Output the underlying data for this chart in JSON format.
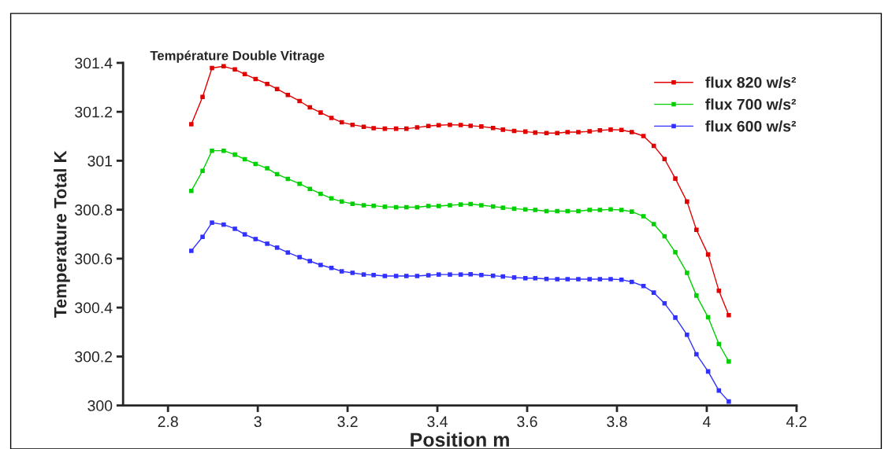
{
  "chart_data": {
    "type": "line",
    "title": "Température Double Vitrage",
    "xlabel": "Position m",
    "ylabel": "Temperature Total K",
    "x": [
      2.852,
      2.877,
      2.898,
      2.924,
      2.949,
      2.971,
      2.995,
      3.021,
      3.043,
      3.067,
      3.093,
      3.116,
      3.14,
      3.164,
      3.187,
      3.211,
      3.236,
      3.258,
      3.283,
      3.308,
      3.331,
      3.355,
      3.38,
      3.403,
      3.428,
      3.452,
      3.474,
      3.498,
      3.524,
      3.546,
      3.571,
      3.596,
      3.618,
      3.643,
      3.667,
      3.69,
      3.714,
      3.739,
      3.762,
      3.786,
      3.81,
      3.833,
      3.859,
      3.882,
      3.906,
      3.93,
      3.956,
      3.977,
      4.003,
      4.027,
      4.049
    ],
    "series": [
      {
        "name": "flux 820 w/s²",
        "color": "#e00000",
        "values": [
          301.149,
          301.261,
          301.379,
          301.386,
          301.373,
          301.354,
          301.334,
          301.314,
          301.293,
          301.269,
          301.244,
          301.218,
          301.197,
          301.175,
          301.157,
          301.147,
          301.139,
          301.133,
          301.131,
          301.131,
          301.131,
          301.136,
          301.142,
          301.145,
          301.147,
          301.146,
          301.143,
          301.14,
          301.134,
          301.127,
          301.122,
          301.119,
          301.115,
          301.113,
          301.113,
          301.117,
          301.117,
          301.12,
          301.124,
          301.127,
          301.126,
          301.117,
          301.101,
          301.061,
          301.007,
          300.927,
          300.833,
          300.718,
          300.617,
          300.469,
          300.369
        ]
      },
      {
        "name": "flux 700 w/s²",
        "color": "#00d000",
        "values": [
          300.877,
          300.959,
          301.041,
          301.041,
          301.025,
          301.006,
          300.987,
          300.969,
          300.945,
          300.926,
          300.906,
          300.885,
          300.865,
          300.846,
          300.833,
          300.824,
          300.818,
          300.816,
          300.812,
          300.81,
          300.81,
          300.81,
          300.815,
          300.815,
          300.818,
          300.821,
          300.823,
          300.818,
          300.813,
          300.808,
          300.804,
          300.801,
          300.799,
          300.794,
          300.794,
          300.794,
          300.794,
          300.799,
          300.799,
          300.801,
          300.799,
          300.792,
          300.773,
          300.741,
          300.691,
          300.626,
          300.542,
          300.449,
          300.36,
          300.251,
          300.18
        ]
      },
      {
        "name": "flux 600 w/s²",
        "color": "#3030ff",
        "values": [
          300.632,
          300.689,
          300.747,
          300.739,
          300.722,
          300.699,
          300.68,
          300.661,
          300.645,
          300.625,
          300.606,
          300.59,
          300.574,
          300.562,
          300.548,
          300.542,
          300.535,
          300.533,
          300.529,
          300.529,
          300.529,
          300.529,
          300.532,
          300.535,
          300.535,
          300.535,
          300.536,
          300.533,
          300.53,
          300.527,
          300.523,
          300.52,
          300.52,
          300.517,
          300.516,
          300.516,
          300.516,
          300.516,
          300.516,
          300.516,
          300.514,
          300.505,
          300.488,
          300.461,
          300.417,
          300.359,
          300.289,
          300.209,
          300.139,
          300.061,
          300.016
        ]
      }
    ],
    "xlim": [
      2.7,
      4.2
    ],
    "xticks": [
      2.8,
      3,
      3.2,
      3.4,
      3.6,
      3.8,
      4,
      4.2
    ],
    "ylim": [
      300,
      301.4
    ],
    "yticks": [
      300,
      300.2,
      300.4,
      300.6,
      300.8,
      301,
      301.2,
      301.4
    ],
    "marker": "square",
    "line_style": "solid",
    "grid": false,
    "legend": "top right"
  }
}
